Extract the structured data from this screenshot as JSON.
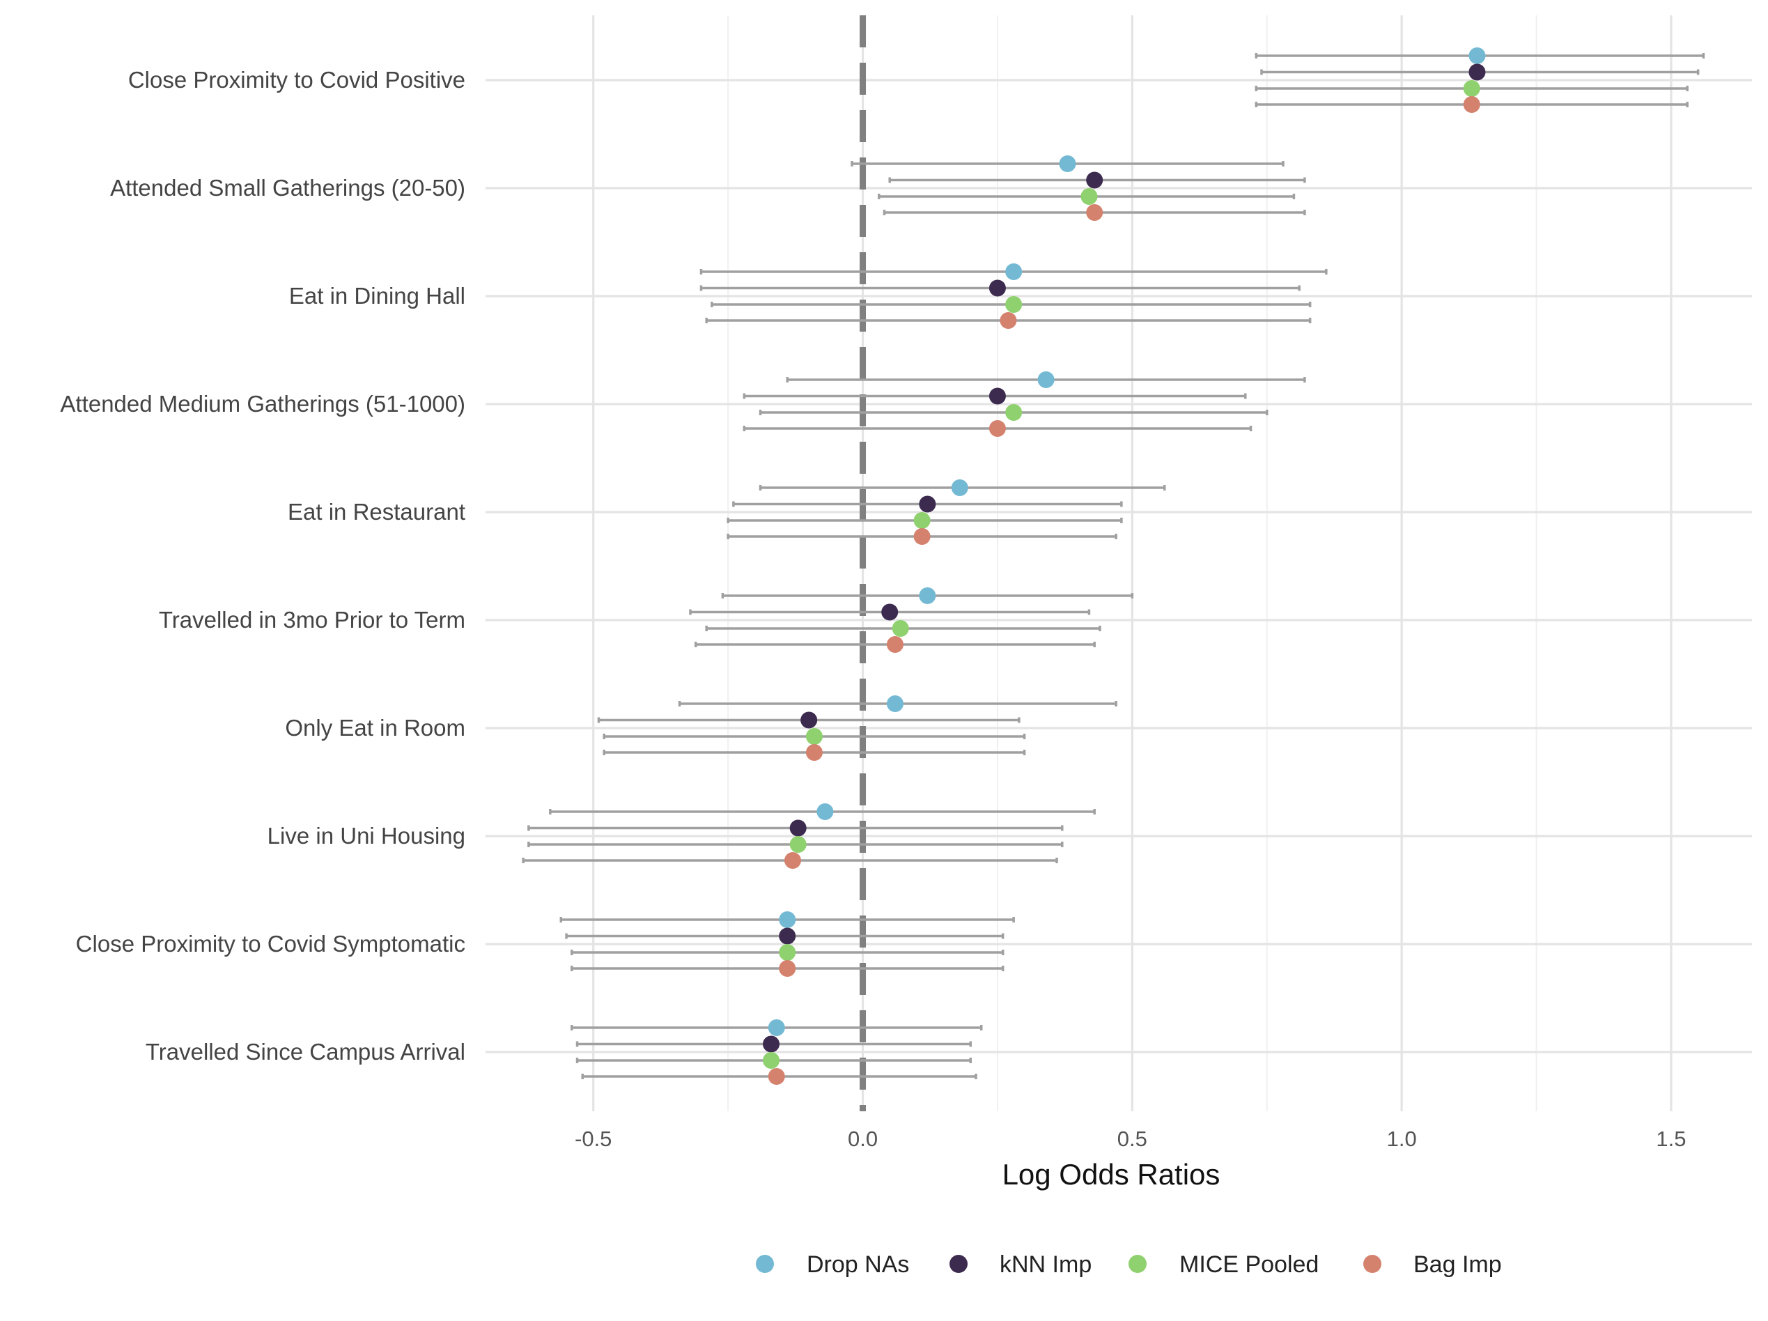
{
  "chart_data": {
    "type": "dot-errorbar",
    "title": "",
    "xlabel": "Log Odds Ratios",
    "ylabel": "",
    "xlim": [
      -0.7,
      1.65
    ],
    "xticks": [
      -0.5,
      0.0,
      0.5,
      1.0,
      1.5
    ],
    "xtick_labels": [
      "-0.5",
      "0.0",
      "0.5",
      "1.0",
      "1.5"
    ],
    "reference_line": 0,
    "grid": true,
    "legend_position": "bottom",
    "categories": [
      "Close Proximity to Covid Positive",
      "Attended Small Gatherings (20-50)",
      "Eat in Dining Hall",
      "Attended Medium Gatherings (51-1000)",
      "Eat in Restaurant",
      "Travelled in 3mo Prior to Term",
      "Only Eat in Room",
      "Live in Uni Housing",
      "Close Proximity to Covid Symptomatic",
      "Travelled Since Campus Arrival"
    ],
    "series": [
      {
        "name": "Drop NAs",
        "color": "#74b9d4",
        "estimates": [
          1.14,
          0.38,
          0.28,
          0.34,
          0.18,
          0.12,
          0.06,
          -0.07,
          -0.14,
          -0.16
        ],
        "lower": [
          0.73,
          -0.02,
          -0.3,
          -0.14,
          -0.19,
          -0.26,
          -0.34,
          -0.58,
          -0.56,
          -0.54
        ],
        "upper": [
          1.56,
          0.78,
          0.86,
          0.82,
          0.56,
          0.5,
          0.47,
          0.43,
          0.28,
          0.22
        ]
      },
      {
        "name": "kNN Imp",
        "color": "#3d2b4f",
        "estimates": [
          1.14,
          0.43,
          0.25,
          0.25,
          0.12,
          0.05,
          -0.1,
          -0.12,
          -0.14,
          -0.17
        ],
        "lower": [
          0.74,
          0.05,
          -0.3,
          -0.22,
          -0.24,
          -0.32,
          -0.49,
          -0.62,
          -0.55,
          -0.53
        ],
        "upper": [
          1.55,
          0.82,
          0.81,
          0.71,
          0.48,
          0.42,
          0.29,
          0.37,
          0.26,
          0.2
        ]
      },
      {
        "name": "MICE Pooled",
        "color": "#8fd16e",
        "estimates": [
          1.13,
          0.42,
          0.28,
          0.28,
          0.11,
          0.07,
          -0.09,
          -0.12,
          -0.14,
          -0.17
        ],
        "lower": [
          0.73,
          0.03,
          -0.28,
          -0.19,
          -0.25,
          -0.29,
          -0.48,
          -0.62,
          -0.54,
          -0.53
        ],
        "upper": [
          1.53,
          0.8,
          0.83,
          0.75,
          0.48,
          0.44,
          0.3,
          0.37,
          0.26,
          0.2
        ]
      },
      {
        "name": "Bag Imp",
        "color": "#d4826d",
        "estimates": [
          1.13,
          0.43,
          0.27,
          0.25,
          0.11,
          0.06,
          -0.09,
          -0.13,
          -0.14,
          -0.16
        ],
        "lower": [
          0.73,
          0.04,
          -0.29,
          -0.22,
          -0.25,
          -0.31,
          -0.48,
          -0.63,
          -0.54,
          -0.52
        ],
        "upper": [
          1.53,
          0.82,
          0.83,
          0.72,
          0.47,
          0.43,
          0.3,
          0.36,
          0.26,
          0.21
        ]
      }
    ]
  }
}
